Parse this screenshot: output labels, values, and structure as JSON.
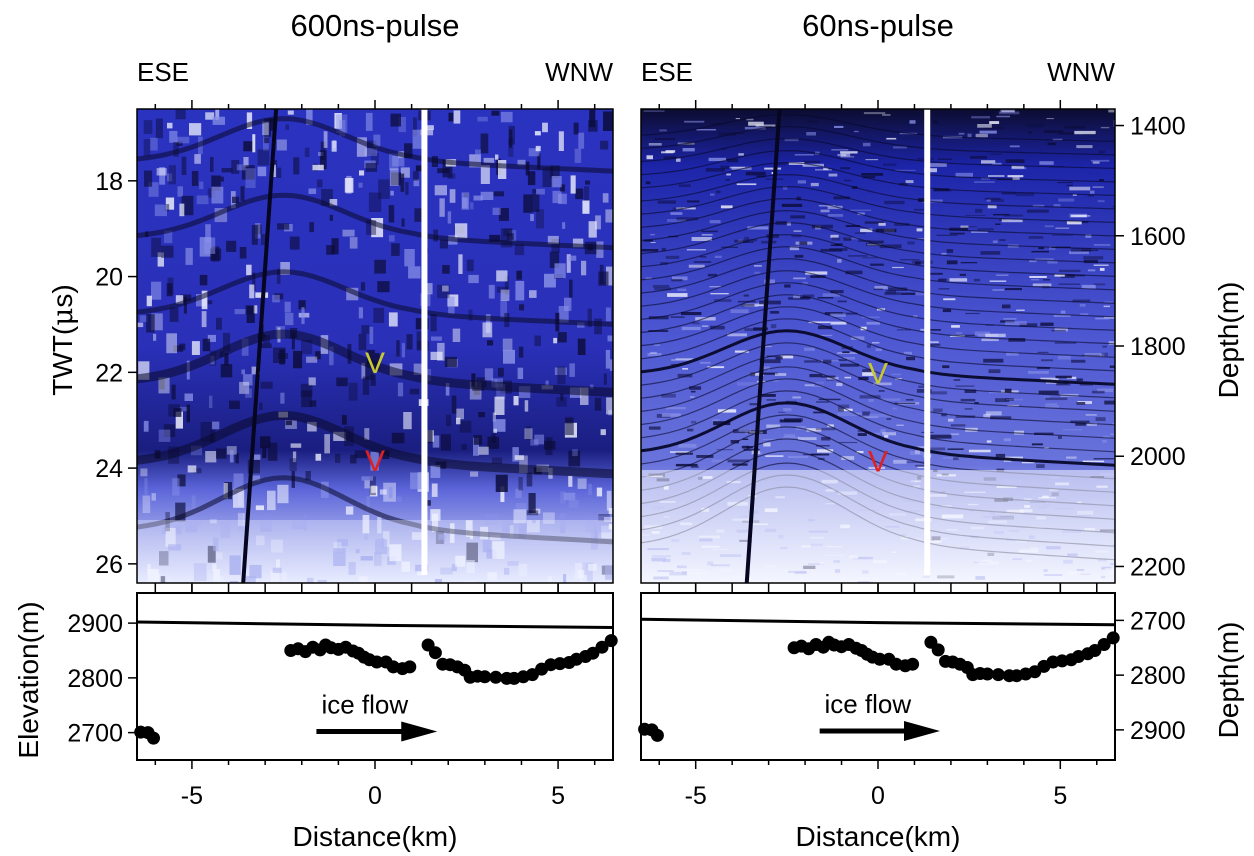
{
  "chart_data": [
    {
      "type": "radargram",
      "panel": "left",
      "title": "600ns-pulse",
      "direction_left": "ESE",
      "direction_right": "WNW",
      "ylabel": "TWT(μs)",
      "y_unit_prefix": "TWT(",
      "y_unit_symbol": "μ",
      "y_unit_suffix": "s)",
      "yticks": [
        "18",
        "20",
        "22",
        "24",
        "26"
      ],
      "ytick_values": [
        18,
        20,
        22,
        24,
        26
      ],
      "ylim": [
        16.5,
        26.4
      ],
      "xlim": [
        -6.5,
        6.5
      ],
      "markers": [
        {
          "label": "V",
          "color": "#c8c832",
          "x": 0.0,
          "y": 21.8
        },
        {
          "label": "V",
          "color": "#e02020",
          "x": 0.0,
          "y": 23.85
        }
      ],
      "gap_x": 1.35
    },
    {
      "type": "radargram",
      "panel": "right",
      "title": "60ns-pulse",
      "direction_left": "ESE",
      "direction_right": "WNW",
      "ylabel": "Depth(m)",
      "yticks": [
        "1400",
        "1600",
        "1800",
        "2000",
        "2200"
      ],
      "ytick_values": [
        1400,
        1600,
        1800,
        2000,
        2200
      ],
      "ylim": [
        1370,
        2230
      ],
      "xlim": [
        -6.5,
        6.5
      ],
      "markers": [
        {
          "label": "V",
          "color": "#c8c832",
          "x": 0.0,
          "y": 1850
        },
        {
          "label": "V",
          "color": "#e02020",
          "x": 0.0,
          "y": 2010
        }
      ],
      "gap_x": 1.35
    },
    {
      "type": "line",
      "panel": "bottom-left",
      "ylabel": "Elevation(m)",
      "yticks": [
        "2700",
        "2800",
        "2900"
      ],
      "ytick_values": [
        2700,
        2800,
        2900
      ],
      "ylim": [
        2650,
        2955
      ],
      "xlabel": "Distance(km)",
      "xticks": [
        "-5",
        "0",
        "5"
      ],
      "xtick_values": [
        -5,
        0,
        5
      ],
      "xlim": [
        -6.5,
        6.5
      ],
      "annotation": "ice flow",
      "arrow_from": [
        -1.6,
        2702
      ],
      "arrow_to": [
        1.7,
        2702
      ],
      "surface": {
        "x": [
          -6.5,
          0,
          6.5
        ],
        "y": [
          2902,
          2896,
          2892
        ]
      },
      "bed_points": {
        "x": [
          -6.4,
          -6.2,
          -6.05,
          -2.3,
          -2.1,
          -1.9,
          -1.7,
          -1.5,
          -1.35,
          -1.2,
          -1.0,
          -0.8,
          -0.6,
          -0.45,
          -0.3,
          -0.15,
          0.05,
          0.3,
          0.5,
          0.75,
          0.95,
          1.45,
          1.65,
          1.85,
          2.05,
          2.25,
          2.45,
          2.6,
          2.8,
          3.0,
          3.3,
          3.6,
          3.8,
          4.05,
          4.3,
          4.55,
          4.8,
          5.05,
          5.3,
          5.5,
          5.75,
          5.95,
          6.2,
          6.45
        ],
        "y": [
          2701,
          2700,
          2690,
          2850,
          2853,
          2848,
          2856,
          2851,
          2860,
          2855,
          2852,
          2856,
          2849,
          2845,
          2838,
          2833,
          2829,
          2829,
          2820,
          2817,
          2820,
          2860,
          2846,
          2825,
          2824,
          2820,
          2814,
          2801,
          2803,
          2802,
          2801,
          2799,
          2799,
          2802,
          2806,
          2816,
          2824,
          2826,
          2828,
          2834,
          2839,
          2845,
          2856,
          2868
        ]
      }
    },
    {
      "type": "line",
      "panel": "bottom-right",
      "ylabel": "Depth(m)",
      "yticks": [
        "2700",
        "2800",
        "2900"
      ],
      "ytick_values": [
        2700,
        2800,
        2900
      ],
      "ylim": [
        2650,
        2955
      ],
      "xlabel": "Distance(km)",
      "xticks": [
        "-5",
        "0",
        "5"
      ],
      "xtick_values": [
        -5,
        0,
        5
      ],
      "xlim": [
        -6.5,
        6.5
      ],
      "annotation": "ice flow",
      "arrow_from": [
        -1.6,
        2902
      ],
      "arrow_to": [
        1.7,
        2902
      ],
      "surface": {
        "x": [
          -6.5,
          0,
          6.5
        ],
        "y": [
          2698,
          2704,
          2708
        ]
      },
      "bed_points": {
        "x": [
          -6.4,
          -6.2,
          -6.05,
          -2.3,
          -2.1,
          -1.9,
          -1.7,
          -1.5,
          -1.35,
          -1.2,
          -1.0,
          -0.8,
          -0.6,
          -0.45,
          -0.3,
          -0.15,
          0.05,
          0.3,
          0.5,
          0.75,
          0.95,
          1.45,
          1.65,
          1.85,
          2.05,
          2.25,
          2.45,
          2.6,
          2.8,
          3.0,
          3.3,
          3.6,
          3.8,
          4.05,
          4.3,
          4.55,
          4.8,
          5.05,
          5.3,
          5.5,
          5.75,
          5.95,
          6.2,
          6.45
        ],
        "y": [
          2899,
          2900,
          2910,
          2750,
          2747,
          2752,
          2744,
          2749,
          2740,
          2745,
          2748,
          2744,
          2751,
          2755,
          2762,
          2767,
          2771,
          2771,
          2780,
          2783,
          2780,
          2740,
          2754,
          2775,
          2776,
          2780,
          2786,
          2799,
          2797,
          2798,
          2799,
          2801,
          2801,
          2798,
          2794,
          2784,
          2776,
          2774,
          2772,
          2766,
          2761,
          2755,
          2744,
          2732
        ]
      }
    }
  ],
  "colors": {
    "radar_dark": "#0a0a28",
    "radar_blue": "#1e28c8",
    "radar_light": "#e8ecff",
    "marker_yellow": "#c8c832",
    "marker_red": "#e02020"
  }
}
